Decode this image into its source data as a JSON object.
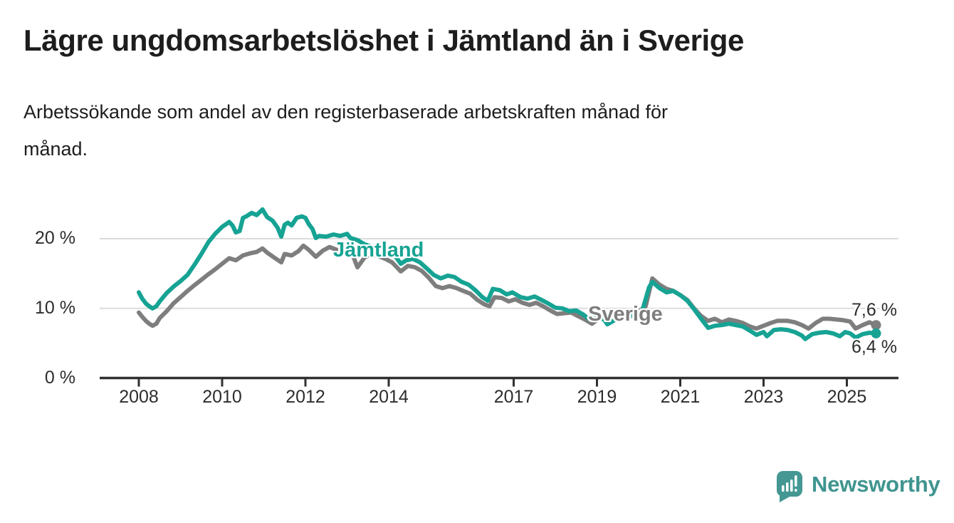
{
  "header": {
    "title": "Lägre ungdomsarbetslöshet i Jämtland än i Sverige",
    "subtitle_line1": "Arbetssökande som andel av den registerbaserade arbetskraften månad för",
    "subtitle_line2": "månad."
  },
  "chart_data": {
    "type": "line",
    "unit": "%",
    "x_range": [
      2008.0,
      2025.7
    ],
    "ylim": [
      0,
      25
    ],
    "grid": "horizontal",
    "yticks": [
      {
        "label": "20 %",
        "value": 20
      },
      {
        "label": "10 %",
        "value": 10
      },
      {
        "label": "0 %",
        "value": 0
      }
    ],
    "xticks": [
      {
        "label": "2008",
        "year": 2008
      },
      {
        "label": "2010",
        "year": 2010
      },
      {
        "label": "2012",
        "year": 2012
      },
      {
        "label": "2014",
        "year": 2014
      },
      {
        "label": "2017",
        "year": 2017
      },
      {
        "label": "2019",
        "year": 2019
      },
      {
        "label": "2021",
        "year": 2021
      },
      {
        "label": "2023",
        "year": 2023
      },
      {
        "label": "2025",
        "year": 2025
      }
    ],
    "series": [
      {
        "id": "sverige",
        "name": "Sverige",
        "color": "#7e7e7e",
        "end_value": 7.6,
        "end_label": "7,6 %",
        "points": [
          [
            2008.0,
            9.4
          ],
          [
            2008.08,
            8.8
          ],
          [
            2008.17,
            8.2
          ],
          [
            2008.25,
            7.8
          ],
          [
            2008.33,
            7.5
          ],
          [
            2008.42,
            7.8
          ],
          [
            2008.5,
            8.6
          ],
          [
            2008.67,
            9.6
          ],
          [
            2008.83,
            10.7
          ],
          [
            2009.0,
            11.6
          ],
          [
            2009.17,
            12.5
          ],
          [
            2009.33,
            13.3
          ],
          [
            2009.5,
            14.1
          ],
          [
            2009.67,
            14.9
          ],
          [
            2009.83,
            15.6
          ],
          [
            2010.0,
            16.4
          ],
          [
            2010.17,
            17.2
          ],
          [
            2010.33,
            16.9
          ],
          [
            2010.5,
            17.6
          ],
          [
            2010.67,
            17.9
          ],
          [
            2010.83,
            18.1
          ],
          [
            2010.97,
            18.6
          ],
          [
            2011.08,
            18.0
          ],
          [
            2011.25,
            17.3
          ],
          [
            2011.42,
            16.6
          ],
          [
            2011.5,
            17.8
          ],
          [
            2011.67,
            17.6
          ],
          [
            2011.83,
            18.2
          ],
          [
            2011.95,
            19.0
          ],
          [
            2012.08,
            18.4
          ],
          [
            2012.25,
            17.4
          ],
          [
            2012.42,
            18.3
          ],
          [
            2012.58,
            18.8
          ],
          [
            2012.75,
            18.4
          ],
          [
            2012.92,
            18.1
          ],
          [
            2013.08,
            18.5
          ],
          [
            2013.25,
            15.9
          ],
          [
            2013.42,
            17.3
          ],
          [
            2013.58,
            17.8
          ],
          [
            2013.75,
            17.5
          ],
          [
            2013.92,
            17.1
          ],
          [
            2014.08,
            16.6
          ],
          [
            2014.29,
            15.3
          ],
          [
            2014.46,
            16.1
          ],
          [
            2014.63,
            15.9
          ],
          [
            2014.79,
            15.4
          ],
          [
            2014.96,
            14.4
          ],
          [
            2015.13,
            13.2
          ],
          [
            2015.29,
            12.9
          ],
          [
            2015.46,
            13.2
          ],
          [
            2015.63,
            12.9
          ],
          [
            2015.79,
            12.5
          ],
          [
            2015.96,
            12.1
          ],
          [
            2016.13,
            11.2
          ],
          [
            2016.29,
            10.6
          ],
          [
            2016.42,
            10.3
          ],
          [
            2016.54,
            11.6
          ],
          [
            2016.71,
            11.5
          ],
          [
            2016.88,
            11.0
          ],
          [
            2017.04,
            11.3
          ],
          [
            2017.21,
            10.8
          ],
          [
            2017.38,
            10.5
          ],
          [
            2017.54,
            10.8
          ],
          [
            2017.71,
            10.3
          ],
          [
            2017.88,
            9.7
          ],
          [
            2018.04,
            9.2
          ],
          [
            2018.21,
            9.3
          ],
          [
            2018.38,
            9.4
          ],
          [
            2018.54,
            8.9
          ],
          [
            2018.71,
            8.4
          ],
          [
            2018.88,
            7.8
          ],
          [
            2019.04,
            8.5
          ],
          [
            2019.21,
            8.8
          ],
          [
            2019.38,
            9.0
          ],
          [
            2019.58,
            9.1
          ],
          [
            2019.79,
            9.2
          ],
          [
            2020.0,
            9.5
          ],
          [
            2020.17,
            10.3
          ],
          [
            2020.33,
            14.3
          ],
          [
            2020.5,
            13.4
          ],
          [
            2020.67,
            12.8
          ],
          [
            2020.83,
            12.5
          ],
          [
            2021.0,
            11.9
          ],
          [
            2021.17,
            11.2
          ],
          [
            2021.33,
            10.0
          ],
          [
            2021.5,
            8.9
          ],
          [
            2021.67,
            8.2
          ],
          [
            2021.83,
            8.5
          ],
          [
            2022.0,
            8.0
          ],
          [
            2022.17,
            8.4
          ],
          [
            2022.33,
            8.2
          ],
          [
            2022.5,
            7.9
          ],
          [
            2022.67,
            7.4
          ],
          [
            2022.83,
            7.1
          ],
          [
            2023.0,
            7.5
          ],
          [
            2023.17,
            7.9
          ],
          [
            2023.33,
            8.2
          ],
          [
            2023.58,
            8.2
          ],
          [
            2023.75,
            8.0
          ],
          [
            2023.92,
            7.6
          ],
          [
            2024.08,
            7.1
          ],
          [
            2024.25,
            7.9
          ],
          [
            2024.42,
            8.5
          ],
          [
            2024.58,
            8.5
          ],
          [
            2024.75,
            8.4
          ],
          [
            2024.92,
            8.3
          ],
          [
            2025.08,
            8.1
          ],
          [
            2025.21,
            7.1
          ],
          [
            2025.38,
            7.6
          ],
          [
            2025.54,
            8.0
          ],
          [
            2025.7,
            7.6
          ]
        ]
      },
      {
        "id": "jamtland",
        "name": "Jämtland",
        "color": "#16a394",
        "end_value": 6.4,
        "end_label": "6,4 %",
        "points": [
          [
            2008.0,
            12.3
          ],
          [
            2008.08,
            11.4
          ],
          [
            2008.17,
            10.7
          ],
          [
            2008.25,
            10.3
          ],
          [
            2008.33,
            10.0
          ],
          [
            2008.42,
            10.3
          ],
          [
            2008.5,
            11.0
          ],
          [
            2008.67,
            12.2
          ],
          [
            2008.83,
            13.1
          ],
          [
            2009.0,
            13.9
          ],
          [
            2009.17,
            14.8
          ],
          [
            2009.33,
            16.2
          ],
          [
            2009.5,
            17.8
          ],
          [
            2009.67,
            19.5
          ],
          [
            2009.83,
            20.7
          ],
          [
            2010.0,
            21.7
          ],
          [
            2010.17,
            22.4
          ],
          [
            2010.25,
            21.9
          ],
          [
            2010.33,
            20.9
          ],
          [
            2010.42,
            21.1
          ],
          [
            2010.5,
            23.0
          ],
          [
            2010.58,
            23.2
          ],
          [
            2010.71,
            23.7
          ],
          [
            2010.83,
            23.4
          ],
          [
            2010.97,
            24.2
          ],
          [
            2011.08,
            23.1
          ],
          [
            2011.21,
            22.6
          ],
          [
            2011.33,
            21.6
          ],
          [
            2011.42,
            20.3
          ],
          [
            2011.5,
            22.0
          ],
          [
            2011.58,
            22.3
          ],
          [
            2011.67,
            21.9
          ],
          [
            2011.79,
            23.0
          ],
          [
            2011.92,
            23.2
          ],
          [
            2012.0,
            23.0
          ],
          [
            2012.08,
            22.1
          ],
          [
            2012.17,
            21.4
          ],
          [
            2012.25,
            20.1
          ],
          [
            2012.33,
            20.4
          ],
          [
            2012.5,
            20.3
          ],
          [
            2012.67,
            20.6
          ],
          [
            2012.83,
            20.4
          ],
          [
            2013.0,
            20.7
          ],
          [
            2013.08,
            20.1
          ],
          [
            2013.25,
            19.8
          ],
          [
            2013.42,
            19.2
          ],
          [
            2013.58,
            18.9
          ],
          [
            2013.75,
            18.4
          ],
          [
            2013.92,
            18.6
          ],
          [
            2014.08,
            18.2
          ],
          [
            2014.17,
            17.4
          ],
          [
            2014.29,
            16.4
          ],
          [
            2014.42,
            16.9
          ],
          [
            2014.58,
            17.1
          ],
          [
            2014.75,
            16.6
          ],
          [
            2014.92,
            15.7
          ],
          [
            2015.08,
            14.8
          ],
          [
            2015.25,
            14.3
          ],
          [
            2015.42,
            14.7
          ],
          [
            2015.58,
            14.5
          ],
          [
            2015.75,
            13.8
          ],
          [
            2015.92,
            13.4
          ],
          [
            2016.08,
            12.6
          ],
          [
            2016.25,
            11.6
          ],
          [
            2016.38,
            11.1
          ],
          [
            2016.5,
            12.8
          ],
          [
            2016.67,
            12.6
          ],
          [
            2016.83,
            12.0
          ],
          [
            2016.97,
            12.3
          ],
          [
            2017.17,
            11.6
          ],
          [
            2017.33,
            11.4
          ],
          [
            2017.5,
            11.7
          ],
          [
            2017.67,
            11.2
          ],
          [
            2017.83,
            10.7
          ],
          [
            2018.0,
            10.1
          ],
          [
            2018.17,
            10.0
          ],
          [
            2018.33,
            9.6
          ],
          [
            2018.5,
            9.7
          ],
          [
            2018.67,
            9.1
          ],
          [
            2018.83,
            8.4
          ],
          [
            2019.0,
            8.8
          ],
          [
            2019.17,
            8.4
          ],
          [
            2019.25,
            7.7
          ],
          [
            2019.42,
            8.3
          ],
          [
            2019.58,
            8.6
          ],
          [
            2019.75,
            8.8
          ],
          [
            2019.92,
            9.0
          ],
          [
            2020.08,
            9.5
          ],
          [
            2020.25,
            13.0
          ],
          [
            2020.33,
            13.8
          ],
          [
            2020.5,
            12.9
          ],
          [
            2020.67,
            12.3
          ],
          [
            2020.83,
            12.5
          ],
          [
            2021.0,
            11.9
          ],
          [
            2021.17,
            11.1
          ],
          [
            2021.33,
            9.9
          ],
          [
            2021.5,
            8.5
          ],
          [
            2021.67,
            7.2
          ],
          [
            2021.83,
            7.5
          ],
          [
            2022.0,
            7.6
          ],
          [
            2022.17,
            7.8
          ],
          [
            2022.33,
            7.6
          ],
          [
            2022.5,
            7.4
          ],
          [
            2022.67,
            6.8
          ],
          [
            2022.83,
            6.2
          ],
          [
            2023.0,
            6.6
          ],
          [
            2023.08,
            6.0
          ],
          [
            2023.25,
            6.9
          ],
          [
            2023.42,
            7.0
          ],
          [
            2023.58,
            6.9
          ],
          [
            2023.75,
            6.6
          ],
          [
            2023.92,
            6.1
          ],
          [
            2024.0,
            5.6
          ],
          [
            2024.17,
            6.3
          ],
          [
            2024.33,
            6.5
          ],
          [
            2024.5,
            6.6
          ],
          [
            2024.67,
            6.4
          ],
          [
            2024.83,
            6.0
          ],
          [
            2024.96,
            6.6
          ],
          [
            2025.08,
            6.4
          ],
          [
            2025.21,
            5.8
          ],
          [
            2025.38,
            6.3
          ],
          [
            2025.54,
            6.5
          ],
          [
            2025.7,
            6.4
          ]
        ]
      }
    ]
  },
  "footer": {
    "brand": "Newsworthy",
    "logo_icon": "speech-bubble-bar-chart",
    "brand_color": "#3f958f"
  }
}
